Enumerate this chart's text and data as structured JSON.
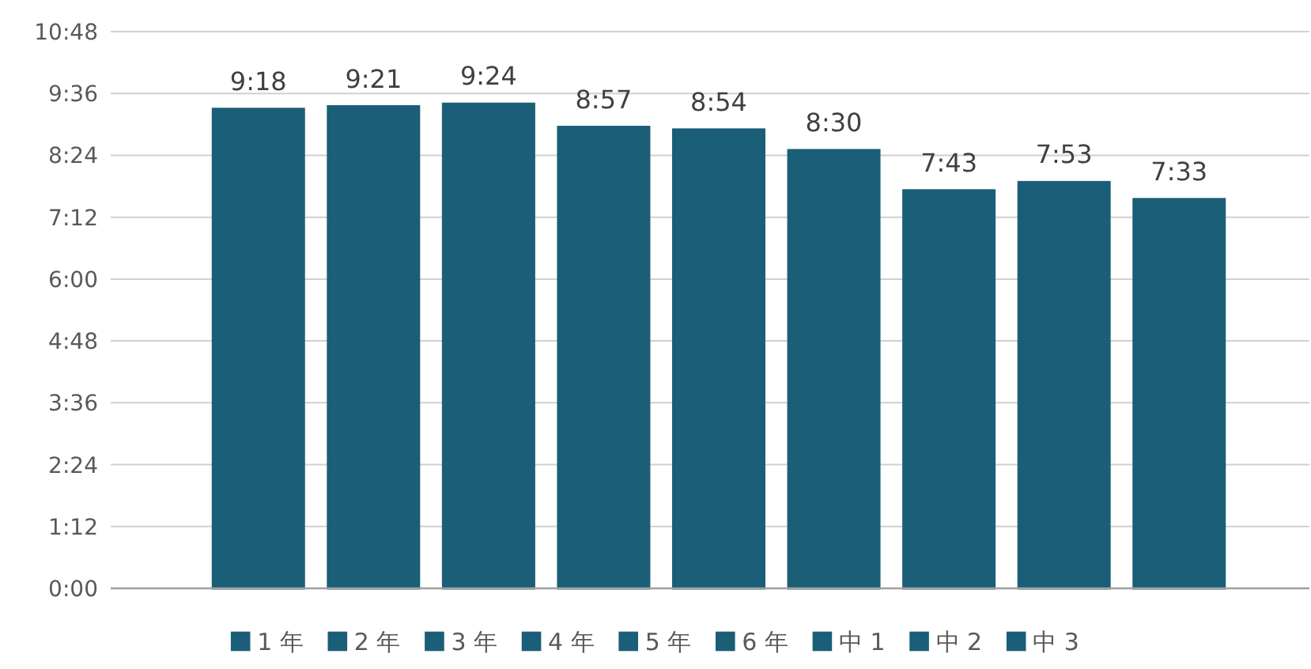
{
  "chart_data": {
    "type": "bar",
    "stacked": true,
    "categories": [
      null,
      null,
      null,
      null,
      null,
      null,
      null,
      null,
      null
    ],
    "series": [
      {
        "name": "1 年",
        "color": "#1b5e78",
        "values": [
          9.3,
          null,
          null,
          null,
          null,
          null,
          null,
          null,
          null
        ],
        "value_labels": [
          "9:18",
          null,
          null,
          null,
          null,
          null,
          null,
          null,
          null
        ]
      },
      {
        "name": "2 年",
        "color": "#1b5e78",
        "values": [
          null,
          9.35,
          null,
          null,
          null,
          null,
          null,
          null,
          null
        ],
        "value_labels": [
          null,
          "9:21",
          null,
          null,
          null,
          null,
          null,
          null,
          null
        ]
      },
      {
        "name": "3 年",
        "color": "#1b5e78",
        "values": [
          null,
          null,
          9.4,
          null,
          null,
          null,
          null,
          null,
          null
        ],
        "value_labels": [
          null,
          null,
          "9:24",
          null,
          null,
          null,
          null,
          null,
          null
        ]
      },
      {
        "name": "4 年",
        "color": "#1b5e78",
        "values": [
          null,
          null,
          null,
          8.95,
          null,
          null,
          null,
          null,
          null
        ],
        "value_labels": [
          null,
          null,
          null,
          "8:57",
          null,
          null,
          null,
          null,
          null
        ]
      },
      {
        "name": "5 年",
        "color": "#1b5e78",
        "values": [
          null,
          null,
          null,
          null,
          8.9,
          null,
          null,
          null,
          null
        ],
        "value_labels": [
          null,
          null,
          null,
          null,
          "8:54",
          null,
          null,
          null,
          null
        ]
      },
      {
        "name": "6 年",
        "color": "#1b5e78",
        "values": [
          null,
          null,
          null,
          null,
          null,
          8.5,
          null,
          null,
          null
        ],
        "value_labels": [
          null,
          null,
          null,
          null,
          null,
          "8:30",
          null,
          null,
          null
        ]
      },
      {
        "name": "中 1",
        "color": "#1b5e78",
        "values": [
          null,
          null,
          null,
          null,
          null,
          null,
          7.72,
          null,
          null
        ],
        "value_labels": [
          null,
          null,
          null,
          null,
          null,
          null,
          "7:43",
          null,
          null
        ]
      },
      {
        "name": "中 2",
        "color": "#1b5e78",
        "values": [
          null,
          null,
          null,
          null,
          null,
          null,
          null,
          7.88,
          null
        ],
        "value_labels": [
          null,
          null,
          null,
          null,
          null,
          null,
          null,
          "7:53",
          null
        ]
      },
      {
        "name": "中 3",
        "color": "#1b5e78",
        "values": [
          null,
          null,
          null,
          null,
          null,
          null,
          null,
          null,
          7.55
        ],
        "value_labels": [
          null,
          null,
          null,
          null,
          null,
          null,
          null,
          null,
          "7:33"
        ]
      }
    ],
    "ylim": [
      0,
      10.8
    ],
    "yticks": [
      {
        "value": 0,
        "label": "0:00"
      },
      {
        "value": 1.2,
        "label": "1:12"
      },
      {
        "value": 2.4,
        "label": "2:24"
      },
      {
        "value": 3.6,
        "label": "3:36"
      },
      {
        "value": 4.8,
        "label": "4:48"
      },
      {
        "value": 6,
        "label": "6:00"
      },
      {
        "value": 7.2,
        "label": "7:12"
      },
      {
        "value": 8.4,
        "label": "8:24"
      },
      {
        "value": 9.6,
        "label": "9:36"
      },
      {
        "value": 10.8,
        "label": "10:48"
      }
    ],
    "grid": "y",
    "legend": "bottom",
    "tick_labels": "y"
  }
}
